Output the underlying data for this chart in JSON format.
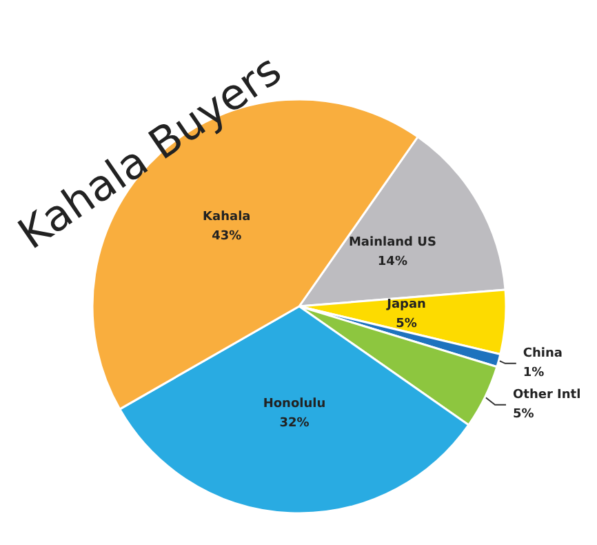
{
  "chart_data": {
    "type": "pie",
    "title": "Kahala Buyers",
    "categories": [
      "Mainland US",
      "Japan",
      "China",
      "Other Intl",
      "Honolulu",
      "Kahala"
    ],
    "values": [
      14,
      5,
      1,
      5,
      32,
      43
    ],
    "colors": [
      "#bdbcc0",
      "#fddb00",
      "#1e73be",
      "#8dc63f",
      "#29abe2",
      "#f9ae3e"
    ],
    "value_labels": [
      "14%",
      "5%",
      "1%",
      "5%",
      "32%",
      "43%"
    ]
  }
}
